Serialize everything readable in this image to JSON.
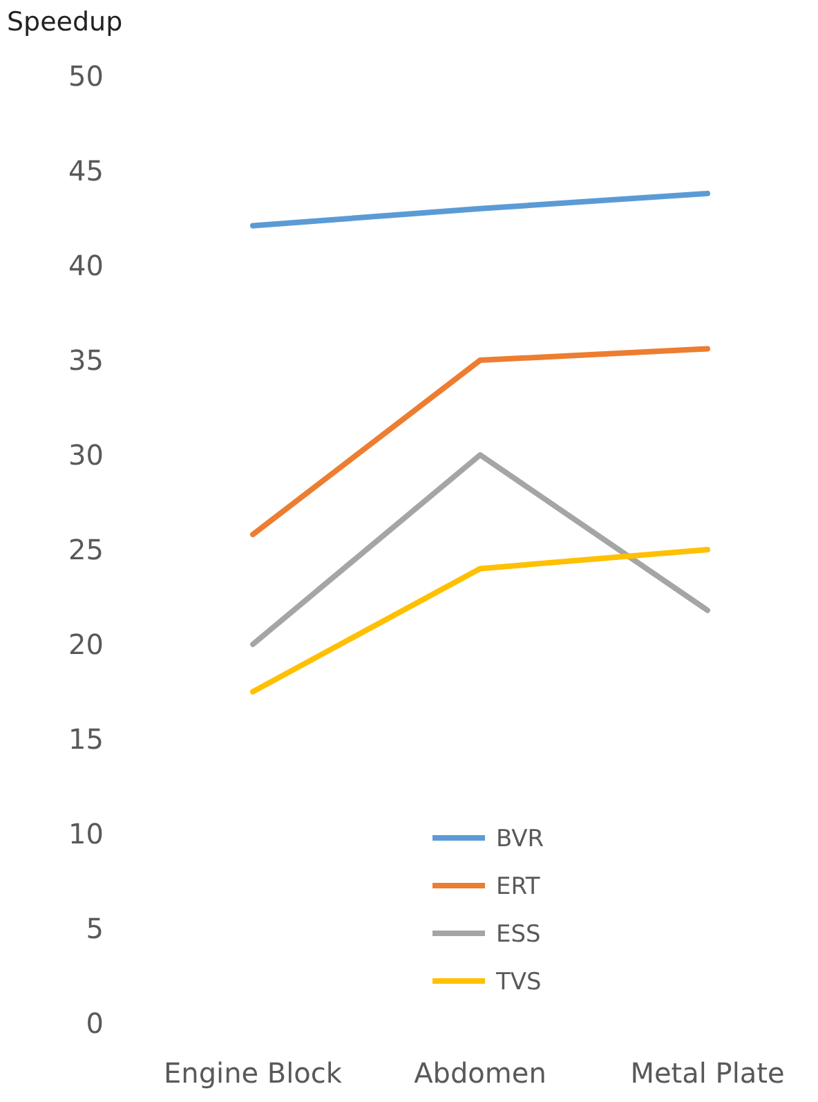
{
  "chart_data": {
    "type": "line",
    "ylabel": "Speedup",
    "categories": [
      "Engine Block",
      "Abdomen",
      "Metal Plate"
    ],
    "series": [
      {
        "name": "BVR",
        "color": "#5b9bd5",
        "values": [
          42.1,
          43.0,
          43.8
        ]
      },
      {
        "name": "ERT",
        "color": "#ed7d31",
        "values": [
          25.8,
          35.0,
          35.6
        ]
      },
      {
        "name": "ESS",
        "color": "#a5a5a5",
        "values": [
          20.0,
          30.0,
          21.8
        ]
      },
      {
        "name": "TVS",
        "color": "#ffc000",
        "values": [
          17.5,
          24.0,
          25.0
        ]
      }
    ],
    "ylim": [
      0,
      50
    ],
    "yticks": [
      0,
      5,
      10,
      15,
      20,
      25,
      30,
      35,
      40,
      45,
      50
    ],
    "grid": false,
    "legend": "bottom",
    "marker": "none",
    "line_style": "solid"
  }
}
